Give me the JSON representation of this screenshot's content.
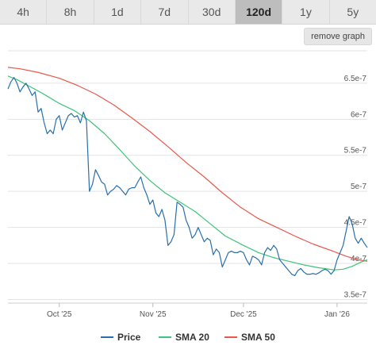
{
  "tabs": [
    {
      "label": "4h",
      "active": false
    },
    {
      "label": "8h",
      "active": false
    },
    {
      "label": "1d",
      "active": false
    },
    {
      "label": "7d",
      "active": false
    },
    {
      "label": "30d",
      "active": false
    },
    {
      "label": "120d",
      "active": true
    },
    {
      "label": "1y",
      "active": false
    },
    {
      "label": "5y",
      "active": false
    }
  ],
  "remove_graph_label": "remove graph",
  "chart_data": {
    "type": "line",
    "title": "",
    "xlabel": "",
    "ylabel": "",
    "x_range": [
      "2025-09-14",
      "2026-01-11"
    ],
    "ylim": [
      3.45e-07,
      6.95e-07
    ],
    "y_ticks": [
      {
        "value": 3.5e-07,
        "label": "3.5e-7"
      },
      {
        "value": 4e-07,
        "label": "4e-7"
      },
      {
        "value": 4.5e-07,
        "label": "4.5e-7"
      },
      {
        "value": 5e-07,
        "label": "5e-7"
      },
      {
        "value": 5.5e-07,
        "label": "5.5e-7"
      },
      {
        "value": 6e-07,
        "label": "6e-7"
      },
      {
        "value": 6.5e-07,
        "label": "6.5e-7"
      }
    ],
    "x_ticks": [
      {
        "value": "2025-10-01",
        "label": "Oct '25"
      },
      {
        "value": "2025-11-01",
        "label": "Nov '25"
      },
      {
        "value": "2025-12-01",
        "label": "Dec '25"
      },
      {
        "value": "2026-01-01",
        "label": "Jan '26"
      }
    ],
    "grid": true,
    "legend_position": "bottom",
    "series": [
      {
        "name": "Price",
        "color": "#2a6faa",
        "points": [
          [
            "2025-09-14",
            6.42e-07
          ],
          [
            "2025-09-15",
            6.52e-07
          ],
          [
            "2025-09-16",
            6.58e-07
          ],
          [
            "2025-09-17",
            6.5e-07
          ],
          [
            "2025-09-18",
            6.38e-07
          ],
          [
            "2025-09-19",
            6.45e-07
          ],
          [
            "2025-09-20",
            6.5e-07
          ],
          [
            "2025-09-21",
            6.42e-07
          ],
          [
            "2025-09-22",
            6.33e-07
          ],
          [
            "2025-09-23",
            6.38e-07
          ],
          [
            "2025-09-24",
            6.1e-07
          ],
          [
            "2025-09-25",
            6.15e-07
          ],
          [
            "2025-09-26",
            5.95e-07
          ],
          [
            "2025-09-27",
            5.8e-07
          ],
          [
            "2025-09-28",
            5.85e-07
          ],
          [
            "2025-09-29",
            5.8e-07
          ],
          [
            "2025-09-30",
            6e-07
          ],
          [
            "2025-10-01",
            6.05e-07
          ],
          [
            "2025-10-02",
            5.85e-07
          ],
          [
            "2025-10-03",
            5.95e-07
          ],
          [
            "2025-10-04",
            6.05e-07
          ],
          [
            "2025-10-05",
            6.08e-07
          ],
          [
            "2025-10-06",
            6.03e-07
          ],
          [
            "2025-10-07",
            6.05e-07
          ],
          [
            "2025-10-08",
            5.95e-07
          ],
          [
            "2025-10-09",
            6.1e-07
          ],
          [
            "2025-10-10",
            5.98e-07
          ],
          [
            "2025-10-11",
            5e-07
          ],
          [
            "2025-10-12",
            5.1e-07
          ],
          [
            "2025-10-13",
            5.3e-07
          ],
          [
            "2025-10-14",
            5.22e-07
          ],
          [
            "2025-10-15",
            5.13e-07
          ],
          [
            "2025-10-16",
            5.1e-07
          ],
          [
            "2025-10-17",
            4.95e-07
          ],
          [
            "2025-10-18",
            5e-07
          ],
          [
            "2025-10-19",
            5.03e-07
          ],
          [
            "2025-10-20",
            5.08e-07
          ],
          [
            "2025-10-21",
            5.05e-07
          ],
          [
            "2025-10-22",
            5e-07
          ],
          [
            "2025-10-23",
            4.95e-07
          ],
          [
            "2025-10-24",
            5.03e-07
          ],
          [
            "2025-10-25",
            5.05e-07
          ],
          [
            "2025-10-26",
            5.05e-07
          ],
          [
            "2025-10-27",
            5.13e-07
          ],
          [
            "2025-10-28",
            5.2e-07
          ],
          [
            "2025-10-29",
            5.05e-07
          ],
          [
            "2025-10-30",
            4.95e-07
          ],
          [
            "2025-10-31",
            4.82e-07
          ],
          [
            "2025-11-01",
            4.88e-07
          ],
          [
            "2025-11-02",
            4.7e-07
          ],
          [
            "2025-11-03",
            4.65e-07
          ],
          [
            "2025-11-04",
            4.75e-07
          ],
          [
            "2025-11-05",
            4.6e-07
          ],
          [
            "2025-11-06",
            4.25e-07
          ],
          [
            "2025-11-07",
            4.3e-07
          ],
          [
            "2025-11-08",
            4.4e-07
          ],
          [
            "2025-11-09",
            4.85e-07
          ],
          [
            "2025-11-10",
            4.82e-07
          ],
          [
            "2025-11-11",
            4.78e-07
          ],
          [
            "2025-11-12",
            4.6e-07
          ],
          [
            "2025-11-13",
            4.5e-07
          ],
          [
            "2025-11-14",
            4.35e-07
          ],
          [
            "2025-11-15",
            4.4e-07
          ],
          [
            "2025-11-16",
            4.5e-07
          ],
          [
            "2025-11-17",
            4.4e-07
          ],
          [
            "2025-11-18",
            4.3e-07
          ],
          [
            "2025-11-19",
            4.35e-07
          ],
          [
            "2025-11-20",
            4.32e-07
          ],
          [
            "2025-11-21",
            4.12e-07
          ],
          [
            "2025-11-22",
            4.2e-07
          ],
          [
            "2025-11-23",
            4.15e-07
          ],
          [
            "2025-11-24",
            3.95e-07
          ],
          [
            "2025-11-25",
            4.05e-07
          ],
          [
            "2025-11-26",
            4.15e-07
          ],
          [
            "2025-11-27",
            4.17e-07
          ],
          [
            "2025-11-28",
            4.15e-07
          ],
          [
            "2025-11-29",
            4.15e-07
          ],
          [
            "2025-11-30",
            4.17e-07
          ],
          [
            "2025-12-01",
            4.15e-07
          ],
          [
            "2025-12-02",
            4.05e-07
          ],
          [
            "2025-12-03",
            3.98e-07
          ],
          [
            "2025-12-04",
            4.1e-07
          ],
          [
            "2025-12-05",
            4.08e-07
          ],
          [
            "2025-12-06",
            4.05e-07
          ],
          [
            "2025-12-07",
            3.98e-07
          ],
          [
            "2025-12-08",
            4.15e-07
          ],
          [
            "2025-12-09",
            4.22e-07
          ],
          [
            "2025-12-10",
            4.18e-07
          ],
          [
            "2025-12-11",
            4.25e-07
          ],
          [
            "2025-12-12",
            4.2e-07
          ],
          [
            "2025-12-13",
            4.05e-07
          ],
          [
            "2025-12-14",
            4e-07
          ],
          [
            "2025-12-15",
            3.95e-07
          ],
          [
            "2025-12-16",
            3.9e-07
          ],
          [
            "2025-12-17",
            3.85e-07
          ],
          [
            "2025-12-18",
            3.83e-07
          ],
          [
            "2025-12-19",
            3.9e-07
          ],
          [
            "2025-12-20",
            3.93e-07
          ],
          [
            "2025-12-21",
            3.88e-07
          ],
          [
            "2025-12-22",
            3.85e-07
          ],
          [
            "2025-12-23",
            3.85e-07
          ],
          [
            "2025-12-24",
            3.86e-07
          ],
          [
            "2025-12-25",
            3.85e-07
          ],
          [
            "2025-12-26",
            3.87e-07
          ],
          [
            "2025-12-27",
            3.9e-07
          ],
          [
            "2025-12-28",
            3.92e-07
          ],
          [
            "2025-12-29",
            3.9e-07
          ],
          [
            "2025-12-30",
            3.85e-07
          ],
          [
            "2025-12-31",
            3.9e-07
          ],
          [
            "2026-01-01",
            4.05e-07
          ],
          [
            "2026-01-02",
            4.15e-07
          ],
          [
            "2026-01-03",
            4.25e-07
          ],
          [
            "2026-01-04",
            4.45e-07
          ],
          [
            "2026-01-05",
            4.65e-07
          ],
          [
            "2026-01-06",
            4.55e-07
          ],
          [
            "2026-01-07",
            4.35e-07
          ],
          [
            "2026-01-08",
            4.28e-07
          ],
          [
            "2026-01-09",
            4.35e-07
          ],
          [
            "2026-01-10",
            4.28e-07
          ],
          [
            "2026-01-11",
            4.22e-07
          ]
        ]
      },
      {
        "name": "SMA 20",
        "color": "#3cc47a",
        "points": [
          [
            "2025-09-14",
            6.6e-07
          ],
          [
            "2025-09-17",
            6.55e-07
          ],
          [
            "2025-09-21",
            6.46e-07
          ],
          [
            "2025-09-25",
            6.37e-07
          ],
          [
            "2025-10-01",
            6.22e-07
          ],
          [
            "2025-10-06",
            6.12e-07
          ],
          [
            "2025-10-11",
            5.98e-07
          ],
          [
            "2025-10-16",
            5.8e-07
          ],
          [
            "2025-10-21",
            5.58e-07
          ],
          [
            "2025-10-26",
            5.35e-07
          ],
          [
            "2025-10-31",
            5.15e-07
          ],
          [
            "2025-11-05",
            4.98e-07
          ],
          [
            "2025-11-10",
            4.85e-07
          ],
          [
            "2025-11-15",
            4.72e-07
          ],
          [
            "2025-11-20",
            4.55e-07
          ],
          [
            "2025-11-25",
            4.38e-07
          ],
          [
            "2025-12-01",
            4.25e-07
          ],
          [
            "2025-12-06",
            4.15e-07
          ],
          [
            "2025-12-11",
            4.08e-07
          ],
          [
            "2025-12-16",
            4.03e-07
          ],
          [
            "2025-12-21",
            3.98e-07
          ],
          [
            "2025-12-26",
            3.94e-07
          ],
          [
            "2025-12-31",
            3.91e-07
          ],
          [
            "2026-01-03",
            3.92e-07
          ],
          [
            "2026-01-06",
            3.96e-07
          ],
          [
            "2026-01-09",
            4.02e-07
          ],
          [
            "2026-01-11",
            4.05e-07
          ]
        ]
      },
      {
        "name": "SMA 50",
        "color": "#e8584c",
        "points": [
          [
            "2025-09-14",
            6.72e-07
          ],
          [
            "2025-09-18",
            6.7e-07
          ],
          [
            "2025-09-24",
            6.65e-07
          ],
          [
            "2025-10-01",
            6.57e-07
          ],
          [
            "2025-10-07",
            6.47e-07
          ],
          [
            "2025-10-13",
            6.35e-07
          ],
          [
            "2025-10-19",
            6.2e-07
          ],
          [
            "2025-10-25",
            6.02e-07
          ],
          [
            "2025-10-31",
            5.83e-07
          ],
          [
            "2025-11-06",
            5.62e-07
          ],
          [
            "2025-11-12",
            5.4e-07
          ],
          [
            "2025-11-18",
            5.2e-07
          ],
          [
            "2025-11-24",
            4.98e-07
          ],
          [
            "2025-11-30",
            4.78e-07
          ],
          [
            "2025-12-06",
            4.62e-07
          ],
          [
            "2025-12-12",
            4.5e-07
          ],
          [
            "2025-12-18",
            4.38e-07
          ],
          [
            "2025-12-24",
            4.27e-07
          ],
          [
            "2025-12-30",
            4.18e-07
          ],
          [
            "2026-01-04",
            4.1e-07
          ],
          [
            "2026-01-08",
            4.05e-07
          ],
          [
            "2026-01-11",
            4.03e-07
          ]
        ]
      }
    ]
  }
}
